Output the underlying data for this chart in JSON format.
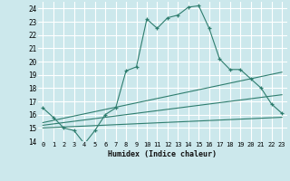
{
  "xlabel": "Humidex (Indice chaleur)",
  "bg_color": "#cce8ec",
  "grid_color": "#ffffff",
  "line_color": "#2e7d6e",
  "xlim": [
    -0.5,
    23.5
  ],
  "ylim": [
    14,
    24.5
  ],
  "xticks": [
    0,
    1,
    2,
    3,
    4,
    5,
    6,
    7,
    8,
    9,
    10,
    11,
    12,
    13,
    14,
    15,
    16,
    17,
    18,
    19,
    20,
    21,
    22,
    23
  ],
  "yticks": [
    14,
    15,
    16,
    17,
    18,
    19,
    20,
    21,
    22,
    23,
    24
  ],
  "series1_x": [
    0,
    1,
    2,
    3,
    4,
    5,
    6,
    7,
    8,
    9,
    10,
    11,
    12,
    13,
    14,
    15,
    16,
    17,
    18,
    19,
    20,
    21,
    22,
    23
  ],
  "series1_y": [
    16.5,
    15.8,
    15.0,
    14.8,
    13.8,
    14.8,
    16.0,
    16.5,
    19.3,
    19.6,
    23.2,
    22.5,
    23.3,
    23.5,
    24.1,
    24.2,
    22.5,
    20.2,
    19.4,
    19.4,
    18.7,
    18.0,
    16.8,
    16.1
  ],
  "series2_x": [
    0,
    23
  ],
  "series2_y": [
    15.0,
    15.8
  ],
  "series3_x": [
    0,
    23
  ],
  "series3_y": [
    15.2,
    17.5
  ],
  "series4_x": [
    0,
    23
  ],
  "series4_y": [
    15.4,
    19.2
  ]
}
